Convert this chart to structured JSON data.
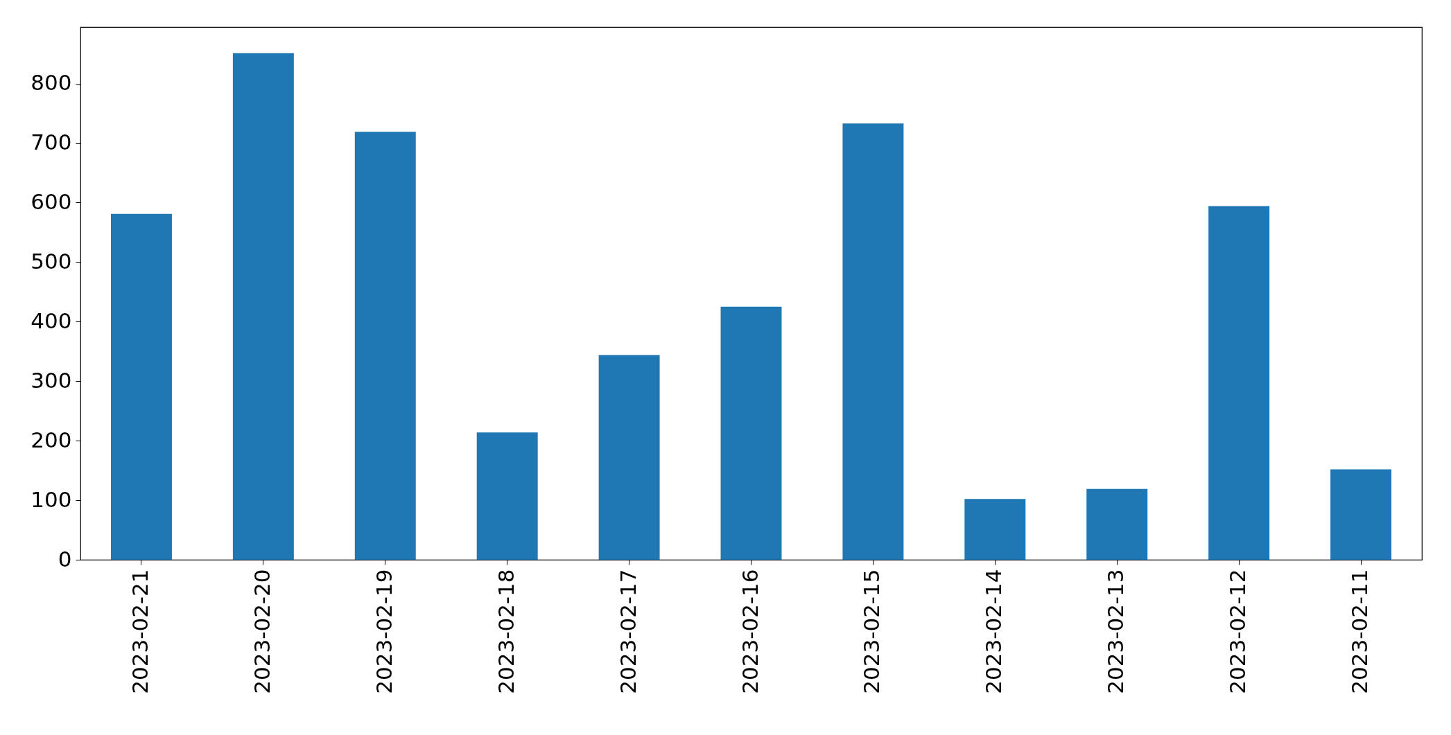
{
  "chart_data": {
    "type": "bar",
    "categories": [
      "2023-02-21",
      "2023-02-20",
      "2023-02-19",
      "2023-02-18",
      "2023-02-17",
      "2023-02-16",
      "2023-02-15",
      "2023-02-14",
      "2023-02-13",
      "2023-02-12",
      "2023-02-11"
    ],
    "values": [
      581,
      851,
      719,
      214,
      344,
      425,
      733,
      102,
      119,
      594,
      152
    ],
    "color": "#1f77b4",
    "ylim": [
      0,
      895
    ],
    "yticks": [
      0,
      100,
      200,
      300,
      400,
      500,
      600,
      700,
      800
    ],
    "grid": false
  }
}
